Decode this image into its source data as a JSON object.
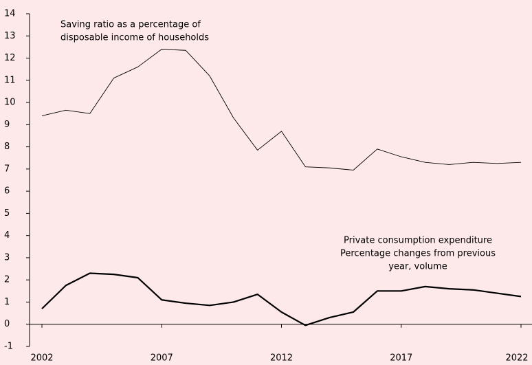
{
  "chart_data": {
    "type": "line",
    "x": [
      2002,
      2003,
      2004,
      2005,
      2006,
      2007,
      2008,
      2009,
      2010,
      2011,
      2012,
      2013,
      2014,
      2015,
      2016,
      2017,
      2018,
      2019,
      2020,
      2021,
      2022
    ],
    "series": [
      {
        "color": "#000000",
        "width": 0.9,
        "values": [
          9.4,
          9.65,
          9.5,
          11.1,
          11.6,
          12.4,
          12.35,
          11.2,
          9.3,
          7.85,
          8.7,
          7.1,
          7.05,
          6.95,
          7.9,
          7.55,
          7.3,
          7.2,
          7.3,
          7.25,
          7.3
        ]
      },
      {
        "color": "#000000",
        "width": 2.2,
        "values": [
          0.7,
          1.75,
          2.3,
          2.25,
          2.1,
          1.1,
          0.95,
          0.85,
          1.0,
          1.35,
          0.55,
          -0.05,
          0.3,
          0.55,
          1.5,
          1.5,
          1.7,
          1.6,
          1.55,
          1.4,
          1.25
        ]
      }
    ],
    "annotations": [
      {
        "lines": [
          "Saving ratio as a percentage of",
          "disposable income of households"
        ]
      },
      {
        "lines": [
          "Private consumption expenditure",
          "Percentage changes from previous",
          "year, volume"
        ]
      }
    ],
    "xlim": [
      2002,
      2022
    ],
    "xticks": [
      2002,
      2007,
      2012,
      2017,
      2022
    ],
    "ylim": [
      -1,
      14
    ],
    "yticks": [
      -1,
      0,
      1,
      2,
      3,
      4,
      5,
      6,
      7,
      8,
      9,
      10,
      11,
      12,
      13,
      14
    ],
    "grid": false
  }
}
